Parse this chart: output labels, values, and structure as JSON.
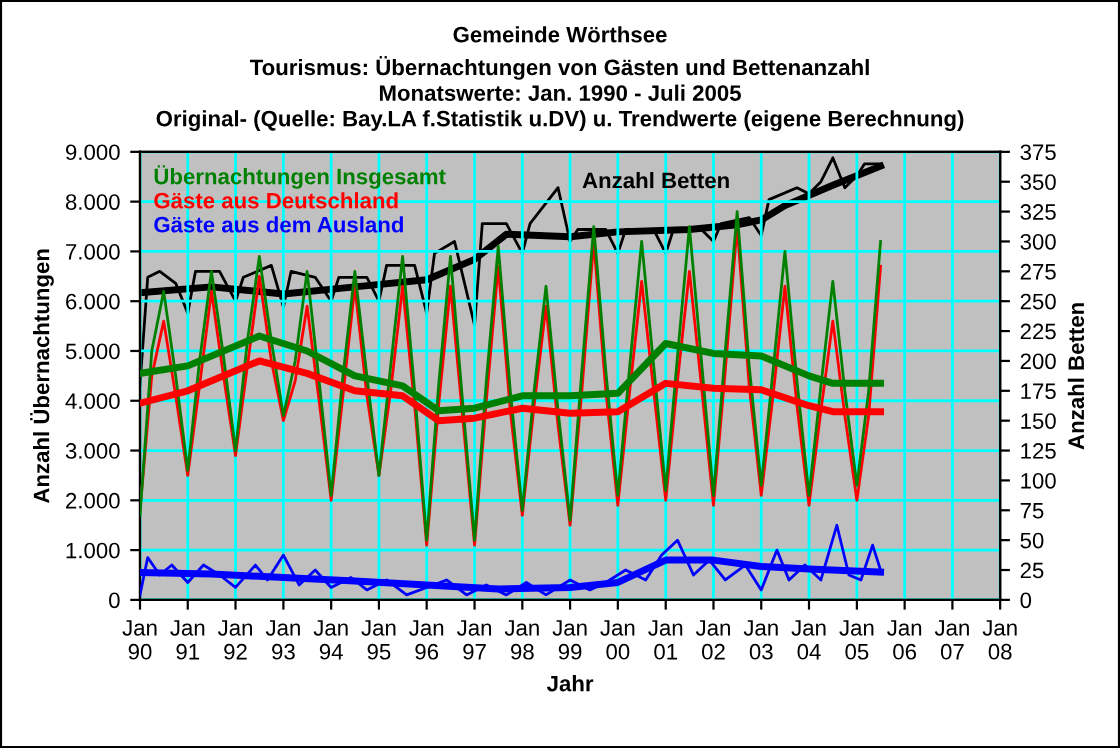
{
  "chart_data": {
    "type": "line",
    "title": "Gemeinde Wörthsee",
    "subtitle": "Tourismus: Übernachtungen von Gästen und Bettenanzahl\nMonatswerte: Jan. 1990 - Juli 2005\nOriginal- (Quelle: Bay.LA f.Statistik u.DV) u. Trendwerte (eigene Berechnung)",
    "xlabel": "Jahr",
    "ylabel": "Anzahl Übernachtungen",
    "y2label": "Anzahl Betten",
    "xlim": [
      "1990-01",
      "2008-01"
    ],
    "xticks": [
      {
        "value": "1990-01",
        "label": "Jan\n90"
      },
      {
        "value": "1991-01",
        "label": "Jan\n91"
      },
      {
        "value": "1992-01",
        "label": "Jan\n92"
      },
      {
        "value": "1993-01",
        "label": "Jan\n93"
      },
      {
        "value": "1994-01",
        "label": "Jan\n94"
      },
      {
        "value": "1995-01",
        "label": "Jan\n95"
      },
      {
        "value": "1996-01",
        "label": "Jan\n96"
      },
      {
        "value": "1997-01",
        "label": "Jan\n97"
      },
      {
        "value": "1998-01",
        "label": "Jan\n98"
      },
      {
        "value": "1999-01",
        "label": "Jan\n99"
      },
      {
        "value": "2000-01",
        "label": "Jan\n00"
      },
      {
        "value": "2001-01",
        "label": "Jan\n01"
      },
      {
        "value": "2002-01",
        "label": "Jan\n02"
      },
      {
        "value": "2003-01",
        "label": "Jan\n03"
      },
      {
        "value": "2004-01",
        "label": "Jan\n04"
      },
      {
        "value": "2005-01",
        "label": "Jan\n05"
      },
      {
        "value": "2006-01",
        "label": "Jan\n06"
      },
      {
        "value": "2007-01",
        "label": "Jan\n07"
      },
      {
        "value": "2008-01",
        "label": "Jan\n08"
      }
    ],
    "ylim": [
      0,
      9000
    ],
    "yticks": [
      {
        "value": 0,
        "label": "0"
      },
      {
        "value": 1000,
        "label": "1.000"
      },
      {
        "value": 2000,
        "label": "2.000"
      },
      {
        "value": 3000,
        "label": "3.000"
      },
      {
        "value": 4000,
        "label": "4.000"
      },
      {
        "value": 5000,
        "label": "5.000"
      },
      {
        "value": 6000,
        "label": "6.000"
      },
      {
        "value": 7000,
        "label": "7.000"
      },
      {
        "value": 8000,
        "label": "8.000"
      },
      {
        "value": 9000,
        "label": "9.000"
      }
    ],
    "y2lim": [
      0,
      375
    ],
    "y2ticks": [
      0,
      25,
      50,
      75,
      100,
      125,
      150,
      175,
      200,
      225,
      250,
      275,
      300,
      325,
      350,
      375
    ],
    "grid": true,
    "legend": "top left",
    "marker": "none",
    "line_style": "solid",
    "series": [
      {
        "name": "Anzahl Betten",
        "color": "#000000",
        "axis": "y2",
        "x": [
          "1990-01",
          "1990-03",
          "1990-06",
          "1990-10",
          "1991-01",
          "1991-03",
          "1991-09",
          "1992-01",
          "1992-03",
          "1992-10",
          "1993-01",
          "1993-03",
          "1993-09",
          "1994-01",
          "1994-03",
          "1994-10",
          "1995-01",
          "1995-03",
          "1995-10",
          "1996-01",
          "1996-03",
          "1996-08",
          "1997-01",
          "1997-03",
          "1997-09",
          "1998-01",
          "1998-03",
          "1998-10",
          "1999-01",
          "1999-03",
          "1999-10",
          "2000-01",
          "2000-03",
          "2000-10",
          "2001-01",
          "2001-03",
          "2001-10",
          "2002-01",
          "2002-03",
          "2002-10",
          "2003-01",
          "2003-03",
          "2003-10",
          "2004-01",
          "2004-04",
          "2004-07",
          "2004-10",
          "2005-01",
          "2005-03",
          "2005-07"
        ],
        "values": [
          180,
          270,
          275,
          265,
          240,
          275,
          275,
          250,
          270,
          280,
          245,
          275,
          270,
          250,
          270,
          270,
          250,
          280,
          280,
          240,
          290,
          300,
          230,
          315,
          315,
          290,
          315,
          345,
          300,
          310,
          310,
          290,
          310,
          310,
          290,
          310,
          310,
          300,
          315,
          320,
          305,
          335,
          345,
          340,
          350,
          370,
          345,
          355,
          365,
          365
        ]
      },
      {
        "name": "Übernachtungen Insgesamt",
        "color": "#008000",
        "x": [
          "1990-01",
          "1990-04",
          "1990-07",
          "1990-10",
          "1991-01",
          "1991-04",
          "1991-07",
          "1991-10",
          "1992-01",
          "1992-04",
          "1992-07",
          "1992-10",
          "1993-01",
          "1993-04",
          "1993-07",
          "1993-10",
          "1994-01",
          "1994-04",
          "1994-07",
          "1994-10",
          "1995-01",
          "1995-04",
          "1995-07",
          "1995-10",
          "1996-01",
          "1996-04",
          "1996-07",
          "1996-10",
          "1997-01",
          "1997-04",
          "1997-07",
          "1997-10",
          "1998-01",
          "1998-04",
          "1998-07",
          "1998-10",
          "1999-01",
          "1999-04",
          "1999-07",
          "1999-10",
          "2000-01",
          "2000-04",
          "2000-07",
          "2000-10",
          "2001-01",
          "2001-04",
          "2001-07",
          "2001-10",
          "2002-01",
          "2002-04",
          "2002-07",
          "2002-10",
          "2003-01",
          "2003-04",
          "2003-07",
          "2003-10",
          "2004-01",
          "2004-04",
          "2004-07",
          "2004-10",
          "2005-01",
          "2005-04",
          "2005-07"
        ],
        "values": [
          1700,
          5000,
          6200,
          4500,
          2600,
          4800,
          6600,
          4900,
          3000,
          5200,
          6900,
          5200,
          3700,
          4800,
          6600,
          4400,
          2100,
          4500,
          6600,
          4500,
          2500,
          4700,
          6900,
          4200,
          1200,
          4300,
          6900,
          4000,
          1200,
          4400,
          7100,
          4200,
          1800,
          4200,
          6300,
          3800,
          1600,
          4600,
          7500,
          4600,
          2100,
          4700,
          7200,
          4700,
          2200,
          4900,
          7500,
          4800,
          2100,
          5000,
          7800,
          4700,
          2300,
          4600,
          7000,
          4400,
          2100,
          4300,
          6400,
          4200,
          2300,
          4200,
          7200
        ]
      },
      {
        "name": "Gäste aus Deutschland",
        "color": "#ff0000",
        "x": [
          "1990-01",
          "1990-04",
          "1990-07",
          "1990-10",
          "1991-01",
          "1991-04",
          "1991-07",
          "1991-10",
          "1992-01",
          "1992-04",
          "1992-07",
          "1992-10",
          "1993-01",
          "1993-04",
          "1993-07",
          "1993-10",
          "1994-01",
          "1994-04",
          "1994-07",
          "1994-10",
          "1995-01",
          "1995-04",
          "1995-07",
          "1995-10",
          "1996-01",
          "1996-04",
          "1996-07",
          "1996-10",
          "1997-01",
          "1997-04",
          "1997-07",
          "1997-10",
          "1998-01",
          "1998-04",
          "1998-07",
          "1998-10",
          "1999-01",
          "1999-04",
          "1999-07",
          "1999-10",
          "2000-01",
          "2000-04",
          "2000-07",
          "2000-10",
          "2001-01",
          "2001-04",
          "2001-07",
          "2001-10",
          "2002-01",
          "2002-04",
          "2002-07",
          "2002-10",
          "2003-01",
          "2003-04",
          "2003-07",
          "2003-10",
          "2004-01",
          "2004-04",
          "2004-07",
          "2004-10",
          "2005-01",
          "2005-04",
          "2005-07"
        ],
        "values": [
          1800,
          4500,
          5600,
          4100,
          2500,
          4300,
          6200,
          4500,
          2900,
          4700,
          6500,
          4800,
          3600,
          4400,
          5900,
          4000,
          2000,
          4100,
          6300,
          4100,
          2500,
          4200,
          6300,
          3900,
          1100,
          3900,
          6300,
          3700,
          1100,
          4000,
          6700,
          3800,
          1700,
          3900,
          5900,
          3500,
          1500,
          4200,
          7200,
          4200,
          1900,
          4200,
          6400,
          4200,
          2000,
          4400,
          6600,
          4300,
          1900,
          4600,
          7500,
          4300,
          2100,
          4100,
          6300,
          3900,
          1900,
          3800,
          5600,
          3700,
          2000,
          3700,
          6700
        ]
      },
      {
        "name": "Gäste aus dem Ausland",
        "color": "#0000ff",
        "x": [
          "1990-01",
          "1990-03",
          "1990-06",
          "1990-09",
          "1991-01",
          "1991-05",
          "1991-09",
          "1992-01",
          "1992-06",
          "1992-09",
          "1993-01",
          "1993-05",
          "1993-09",
          "1994-01",
          "1994-06",
          "1994-10",
          "1995-03",
          "1995-08",
          "1996-01",
          "1996-06",
          "1996-11",
          "1997-04",
          "1997-09",
          "1998-02",
          "1998-07",
          "1999-01",
          "1999-06",
          "1999-10",
          "2000-03",
          "2000-08",
          "2000-12",
          "2001-04",
          "2001-08",
          "2001-12",
          "2002-04",
          "2002-09",
          "2003-01",
          "2003-05",
          "2003-08",
          "2003-12",
          "2004-04",
          "2004-08",
          "2004-11",
          "2005-02",
          "2005-05",
          "2005-07"
        ],
        "values": [
          100,
          850,
          500,
          700,
          350,
          700,
          500,
          250,
          700,
          400,
          900,
          300,
          600,
          250,
          450,
          200,
          400,
          100,
          250,
          400,
          100,
          300,
          100,
          350,
          100,
          400,
          200,
          350,
          600,
          400,
          900,
          1200,
          500,
          800,
          400,
          700,
          200,
          1000,
          400,
          700,
          400,
          1500,
          500,
          400,
          1100,
          600
        ]
      },
      {
        "color": "#000000",
        "axis": "y2",
        "x": [
          "1990-01",
          "1991-07",
          "1993-01",
          "1994-07",
          "1996-01",
          "1997-01",
          "1997-09",
          "1999-01",
          "2000-01",
          "2001-07",
          "2002-07",
          "2003-01",
          "2003-07",
          "2004-07",
          "2005-07"
        ],
        "values": [
          257,
          262,
          256,
          262,
          268,
          285,
          306,
          304,
          308,
          310,
          314,
          318,
          330,
          347,
          363
        ]
      },
      {
        "color": "#008000",
        "x": [
          "1990-01",
          "1991-01",
          "1992-07",
          "1993-07",
          "1994-07",
          "1995-07",
          "1996-04",
          "1997-01",
          "1998-01",
          "1999-01",
          "2000-01",
          "2001-01",
          "2002-01",
          "2003-01",
          "2004-01",
          "2004-07",
          "2005-07"
        ],
        "values": [
          4550,
          4700,
          5300,
          5000,
          4500,
          4300,
          3800,
          3850,
          4100,
          4100,
          4150,
          5150,
          4950,
          4900,
          4500,
          4350,
          4350
        ]
      },
      {
        "color": "#ff0000",
        "x": [
          "1990-01",
          "1991-01",
          "1992-07",
          "1993-07",
          "1994-07",
          "1995-07",
          "1996-04",
          "1997-01",
          "1998-01",
          "1999-01",
          "2000-01",
          "2001-01",
          "2002-01",
          "2003-01",
          "2004-01",
          "2004-07",
          "2005-07"
        ],
        "values": [
          3950,
          4200,
          4800,
          4550,
          4200,
          4100,
          3600,
          3650,
          3850,
          3750,
          3780,
          4350,
          4250,
          4220,
          3900,
          3780,
          3780
        ]
      },
      {
        "color": "#0000ff",
        "x": [
          "1990-01",
          "1991-07",
          "1993-01",
          "1994-07",
          "1996-01",
          "1997-07",
          "1999-01",
          "2000-01",
          "2001-01",
          "2002-01",
          "2003-01",
          "2004-01",
          "2005-07"
        ],
        "values": [
          550,
          520,
          450,
          380,
          300,
          220,
          250,
          350,
          800,
          800,
          670,
          620,
          560
        ]
      }
    ]
  }
}
